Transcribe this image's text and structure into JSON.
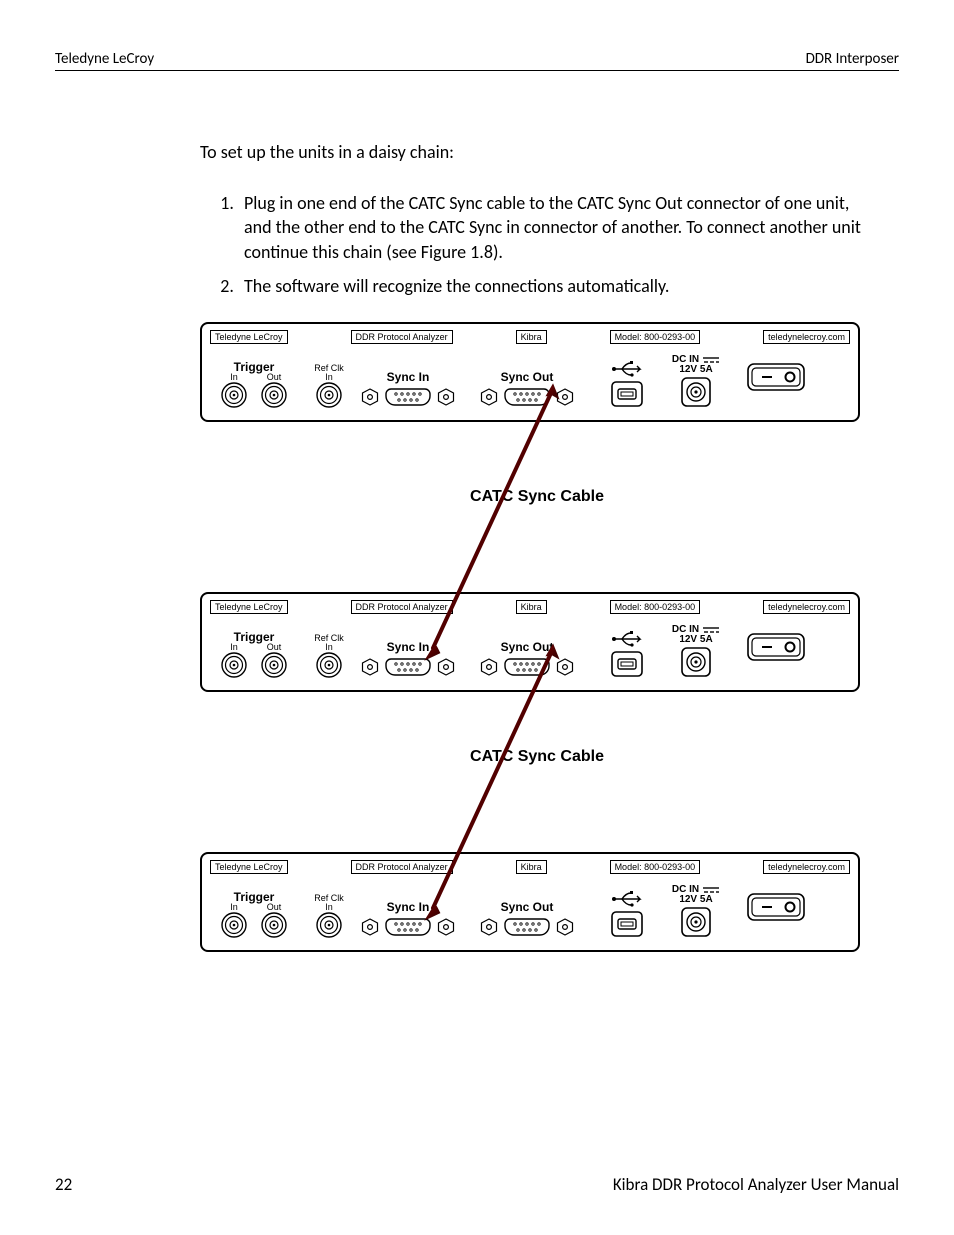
{
  "header": {
    "left": "Teledyne LeCroy",
    "right": "DDR Interposer"
  },
  "footer": {
    "page": "22",
    "manual": "Kibra DDR Protocol Analyzer User Manual"
  },
  "intro": "To set up the units in a daisy chain:",
  "steps": {
    "s1": "Plug in one end of the CATC Sync cable to the CATC Sync Out connector of one unit, and the other end to the CATC Sync in connector of another. To connect another unit continue this chain (see Figure 1.8).",
    "s2": "The software will recognize the connections automatically."
  },
  "cable_label": "CATC Sync Cable",
  "panel": {
    "topcells": {
      "c1": "Teledyne LeCroy",
      "c2": "DDR Protocol Analyzer",
      "c3": "Kibra",
      "c4": "Model: 800-0293-00",
      "c5": "teledynelecroy.com"
    },
    "labels": {
      "trigger": "Trigger",
      "in": "In",
      "out": "Out",
      "refclk": "Ref Clk",
      "syncin": "Sync In",
      "syncout": "Sync Out",
      "dcin": "DC IN",
      "pwr": "12V 5A"
    }
  },
  "arrow_color": "#7a0000",
  "stroke": "#000000"
}
